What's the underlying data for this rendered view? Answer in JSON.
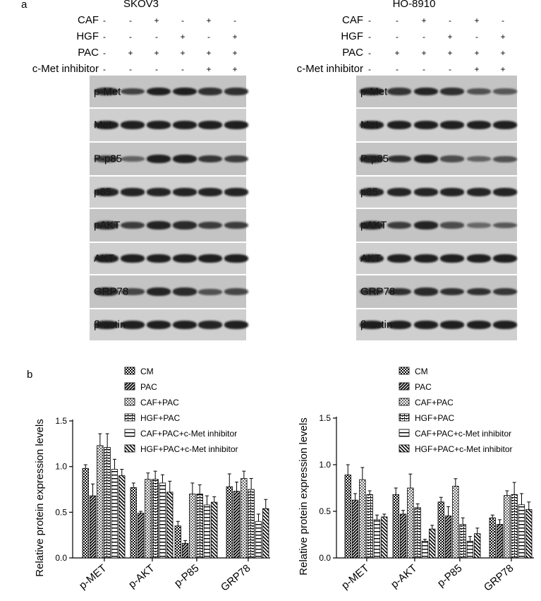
{
  "figure": {
    "panel_a_label": "a",
    "panel_b_label": "b",
    "treatment_labels": [
      "CAF",
      "HGF",
      "PAC",
      "c-Met inhibitor"
    ],
    "treatment_signs": [
      [
        "-",
        "-",
        "+",
        "-",
        "+",
        "-"
      ],
      [
        "-",
        "-",
        "-",
        "+",
        "-",
        "+"
      ],
      [
        "-",
        "+",
        "+",
        "+",
        "+",
        "+"
      ],
      [
        "-",
        "-",
        "-",
        "-",
        "+",
        "+"
      ]
    ],
    "blot_rows": [
      "p-Met",
      "Met",
      "P-p85",
      "p85",
      "pAKT",
      "AKT",
      "GRP78",
      "β-actin"
    ],
    "cell_lines": [
      "SKOV3",
      "HO-8910"
    ],
    "band_intensity": {
      "SKOV3": [
        [
          0.85,
          0.65,
          0.95,
          0.95,
          0.8,
          0.8
        ],
        [
          0.95,
          0.95,
          0.95,
          0.95,
          0.95,
          0.95
        ],
        [
          0.7,
          0.35,
          0.95,
          0.95,
          0.75,
          0.7
        ],
        [
          0.9,
          0.9,
          0.9,
          0.9,
          0.9,
          0.9
        ],
        [
          0.85,
          0.7,
          0.9,
          0.85,
          0.7,
          0.7
        ],
        [
          0.95,
          0.95,
          0.95,
          0.95,
          0.95,
          0.95
        ],
        [
          0.85,
          0.6,
          0.9,
          0.85,
          0.5,
          0.6
        ],
        [
          0.95,
          0.95,
          0.95,
          0.95,
          0.9,
          0.95
        ]
      ],
      "HO-8910": [
        [
          0.95,
          0.75,
          0.9,
          0.8,
          0.5,
          0.45
        ],
        [
          0.95,
          0.95,
          0.95,
          0.95,
          0.95,
          0.95
        ],
        [
          0.9,
          0.8,
          0.95,
          0.55,
          0.35,
          0.5
        ],
        [
          0.9,
          0.9,
          0.9,
          0.9,
          0.9,
          0.9
        ],
        [
          0.9,
          0.7,
          0.9,
          0.55,
          0.3,
          0.45
        ],
        [
          0.95,
          0.95,
          0.95,
          0.95,
          0.95,
          0.95
        ],
        [
          0.75,
          0.8,
          0.85,
          0.8,
          0.8,
          0.75
        ],
        [
          0.95,
          0.95,
          0.95,
          0.95,
          0.95,
          0.95
        ]
      ]
    }
  },
  "chart_data": [
    {
      "type": "bar",
      "ylabel": "Relative protein expression levels",
      "ylim": [
        0,
        1.5
      ],
      "yticks": [
        "0.0",
        "0.5",
        "1.0",
        "1.5"
      ],
      "categories": [
        "p-MET",
        "p-AKT",
        "p-P85",
        "GRP78"
      ],
      "series": [
        {
          "name": "CM",
          "values": [
            0.98,
            0.77,
            0.35,
            0.78
          ],
          "errors": [
            0.04,
            0.05,
            0.05,
            0.14
          ]
        },
        {
          "name": "PAC",
          "values": [
            0.68,
            0.49,
            0.16,
            0.73
          ],
          "errors": [
            0.13,
            0.02,
            0.03,
            0.1
          ]
        },
        {
          "name": "CAF+PAC",
          "values": [
            1.23,
            0.86,
            0.7,
            0.87
          ],
          "errors": [
            0.13,
            0.07,
            0.12,
            0.08
          ]
        },
        {
          "name": "HGF+PAC",
          "values": [
            1.21,
            0.86,
            0.7,
            0.75
          ],
          "errors": [
            0.15,
            0.09,
            0.1,
            0.12
          ]
        },
        {
          "name": "CAF+PAC+c-Met inhibitor",
          "values": [
            0.97,
            0.82,
            0.58,
            0.4
          ],
          "errors": [
            0.11,
            0.09,
            0.1,
            0.08
          ]
        },
        {
          "name": "HGF+PAC+c-Met inhibitor",
          "values": [
            0.9,
            0.72,
            0.61,
            0.54
          ],
          "errors": [
            0.07,
            0.12,
            0.06,
            0.1
          ]
        }
      ],
      "legend": "top-right"
    },
    {
      "type": "bar",
      "ylabel": "Relative protein expression levels",
      "ylim": [
        0,
        1.5
      ],
      "yticks": [
        "0.0",
        "0.5",
        "1.0",
        "1.5"
      ],
      "categories": [
        "p-MET",
        "p-AKT",
        "p-P85",
        "GRP78"
      ],
      "series": [
        {
          "name": "CM",
          "values": [
            0.89,
            0.68,
            0.6,
            0.43
          ],
          "errors": [
            0.11,
            0.07,
            0.05,
            0.03
          ]
        },
        {
          "name": "PAC",
          "values": [
            0.62,
            0.47,
            0.45,
            0.36
          ],
          "errors": [
            0.07,
            0.04,
            0.1,
            0.05
          ]
        },
        {
          "name": "CAF+PAC",
          "values": [
            0.84,
            0.75,
            0.77,
            0.67
          ],
          "errors": [
            0.13,
            0.15,
            0.08,
            0.05
          ]
        },
        {
          "name": "HGF+PAC",
          "values": [
            0.68,
            0.54,
            0.36,
            0.68
          ],
          "errors": [
            0.04,
            0.04,
            0.07,
            0.13
          ]
        },
        {
          "name": "CAF+PAC+c-Met inhibitor",
          "values": [
            0.41,
            0.18,
            0.18,
            0.57
          ],
          "errors": [
            0.05,
            0.02,
            0.05,
            0.12
          ]
        },
        {
          "name": "HGF+PAC+c-Met inhibitor",
          "values": [
            0.44,
            0.31,
            0.26,
            0.52
          ],
          "errors": [
            0.03,
            0.04,
            0.06,
            0.08
          ]
        }
      ],
      "legend": "top-right"
    }
  ]
}
